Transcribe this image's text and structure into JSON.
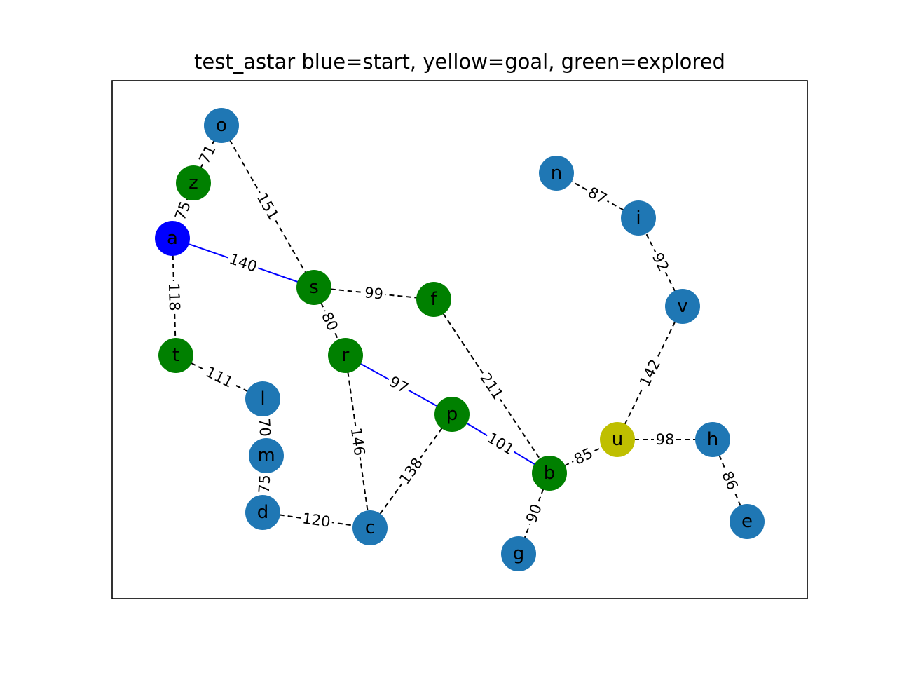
{
  "title": "test_astar blue=start, yellow=goal, green=explored",
  "colors": {
    "start": "#0000ff",
    "goal": "#bfbf00",
    "explored": "#008000",
    "default": "#1f77b4",
    "path_edge": "#0000ff",
    "edge": "#000000"
  },
  "nodes": [
    {
      "id": "o",
      "status": "default"
    },
    {
      "id": "z",
      "status": "explored"
    },
    {
      "id": "a",
      "status": "start"
    },
    {
      "id": "s",
      "status": "explored"
    },
    {
      "id": "f",
      "status": "explored"
    },
    {
      "id": "t",
      "status": "explored"
    },
    {
      "id": "r",
      "status": "explored"
    },
    {
      "id": "l",
      "status": "default"
    },
    {
      "id": "p",
      "status": "explored"
    },
    {
      "id": "m",
      "status": "default"
    },
    {
      "id": "d",
      "status": "default"
    },
    {
      "id": "c",
      "status": "default"
    },
    {
      "id": "b",
      "status": "explored"
    },
    {
      "id": "g",
      "status": "default"
    },
    {
      "id": "u",
      "status": "goal"
    },
    {
      "id": "h",
      "status": "default"
    },
    {
      "id": "e",
      "status": "default"
    },
    {
      "id": "n",
      "status": "default"
    },
    {
      "id": "i",
      "status": "default"
    },
    {
      "id": "v",
      "status": "default"
    }
  ],
  "edges": [
    {
      "from": "o",
      "to": "z",
      "weight": "71",
      "path": false
    },
    {
      "from": "z",
      "to": "a",
      "weight": "75",
      "path": false
    },
    {
      "from": "o",
      "to": "s",
      "weight": "151",
      "path": false
    },
    {
      "from": "a",
      "to": "s",
      "weight": "140",
      "path": true
    },
    {
      "from": "a",
      "to": "t",
      "weight": "118",
      "path": false
    },
    {
      "from": "s",
      "to": "f",
      "weight": "99",
      "path": false
    },
    {
      "from": "s",
      "to": "r",
      "weight": "80",
      "path": false
    },
    {
      "from": "f",
      "to": "b",
      "weight": "211",
      "path": false
    },
    {
      "from": "t",
      "to": "l",
      "weight": "111",
      "path": false
    },
    {
      "from": "l",
      "to": "m",
      "weight": "70",
      "path": false
    },
    {
      "from": "m",
      "to": "d",
      "weight": "75",
      "path": false
    },
    {
      "from": "d",
      "to": "c",
      "weight": "120",
      "path": false
    },
    {
      "from": "r",
      "to": "p",
      "weight": "97",
      "path": true
    },
    {
      "from": "r",
      "to": "c",
      "weight": "146",
      "path": false
    },
    {
      "from": "p",
      "to": "c",
      "weight": "138",
      "path": false
    },
    {
      "from": "p",
      "to": "b",
      "weight": "101",
      "path": true
    },
    {
      "from": "b",
      "to": "u",
      "weight": "85",
      "path": false
    },
    {
      "from": "b",
      "to": "g",
      "weight": "90",
      "path": false
    },
    {
      "from": "u",
      "to": "h",
      "weight": "98",
      "path": false
    },
    {
      "from": "u",
      "to": "v",
      "weight": "142",
      "path": false
    },
    {
      "from": "h",
      "to": "e",
      "weight": "86",
      "path": false
    },
    {
      "from": "v",
      "to": "i",
      "weight": "92",
      "path": false
    },
    {
      "from": "i",
      "to": "n",
      "weight": "87",
      "path": false
    }
  ]
}
